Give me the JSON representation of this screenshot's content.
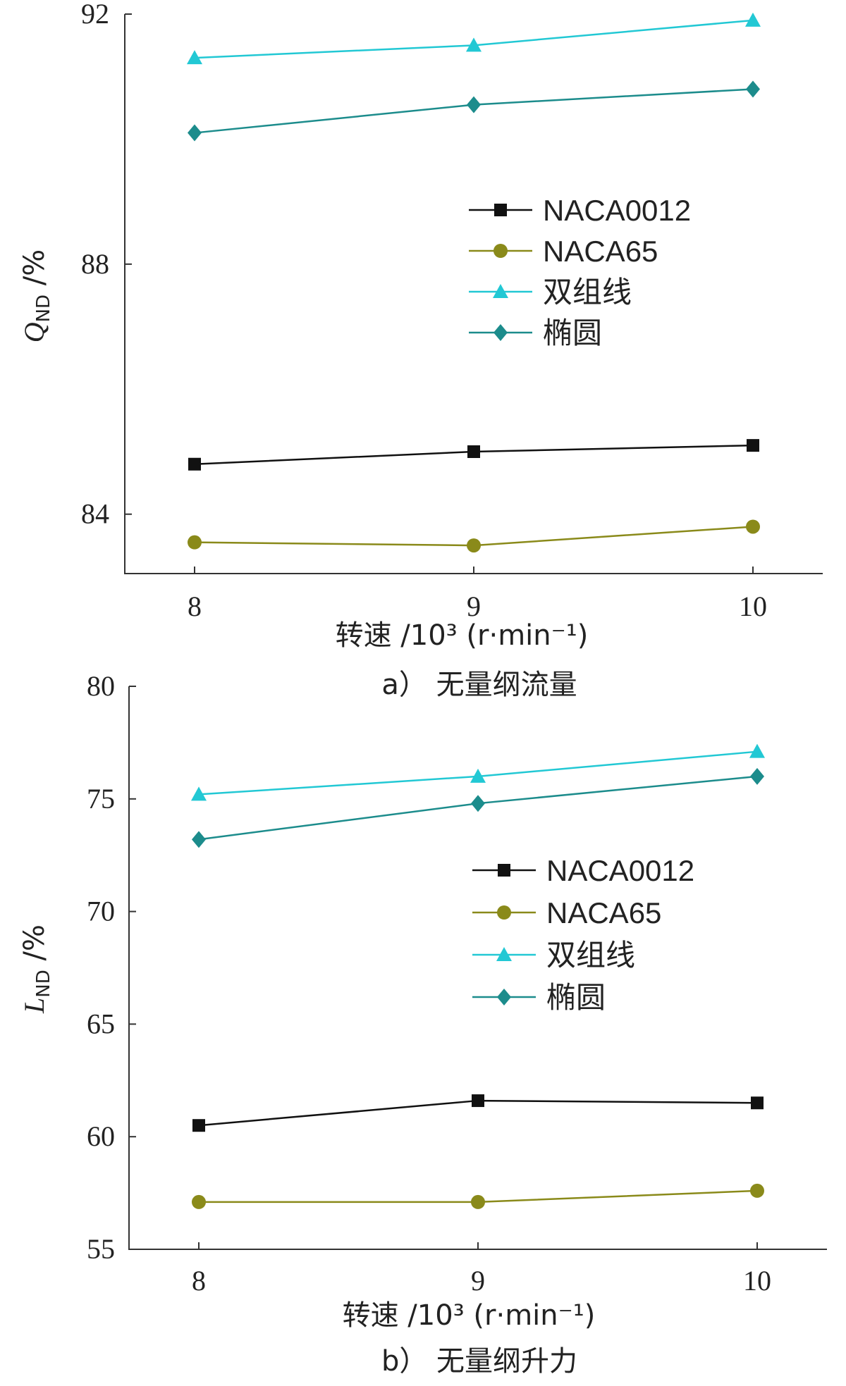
{
  "chart_data": [
    {
      "type": "line",
      "caption": "a）  无量纲流量",
      "xlabel": "转速 /10³ (r·min⁻¹)",
      "ylabel": "Q_ND /%",
      "ylabel_main": "Q",
      "ylabel_sub": "ND",
      "ylabel_unit": " /%",
      "x": [
        8,
        9,
        10
      ],
      "xticks": [
        "8",
        "9",
        "10"
      ],
      "xlim": [
        7.75,
        10.25
      ],
      "yticks": [
        "84",
        "88",
        "92"
      ],
      "ylim": [
        83.05,
        92.0
      ],
      "grid": false,
      "legend_position": "center-right",
      "series": [
        {
          "name": "NACA0012",
          "color": "#111111",
          "marker": "square",
          "values": [
            84.8,
            85.0,
            85.1
          ]
        },
        {
          "name": "NACA65",
          "color": "#8a8a1a",
          "marker": "circle",
          "values": [
            83.55,
            83.5,
            83.8
          ]
        },
        {
          "name": "双组线",
          "color": "#22c8d4",
          "marker": "triangle",
          "values": [
            91.3,
            91.5,
            91.9
          ]
        },
        {
          "name": "椭圆",
          "color": "#1c8c8c",
          "marker": "diamond",
          "values": [
            90.1,
            90.55,
            90.8
          ]
        }
      ]
    },
    {
      "type": "line",
      "caption": "b）  无量纲升力",
      "xlabel": "转速 /10³ (r·min⁻¹)",
      "ylabel": "L_ND /%",
      "ylabel_main": "L",
      "ylabel_sub": "ND",
      "ylabel_unit": " /%",
      "x": [
        8,
        9,
        10
      ],
      "xticks": [
        "8",
        "9",
        "10"
      ],
      "xlim": [
        7.75,
        10.25
      ],
      "yticks": [
        "55",
        "60",
        "65",
        "70",
        "75",
        "80"
      ],
      "ylim": [
        55,
        80
      ],
      "grid": false,
      "legend_position": "center-right",
      "series": [
        {
          "name": "NACA0012",
          "color": "#111111",
          "marker": "square",
          "values": [
            60.5,
            61.6,
            61.5
          ]
        },
        {
          "name": "NACA65",
          "color": "#8a8a1a",
          "marker": "circle",
          "values": [
            57.1,
            57.1,
            57.6
          ]
        },
        {
          "name": "双组线",
          "color": "#22c8d4",
          "marker": "triangle",
          "values": [
            75.2,
            76.0,
            77.1
          ]
        },
        {
          "name": "椭圆",
          "color": "#1c8c8c",
          "marker": "diamond",
          "values": [
            73.2,
            74.8,
            76.0
          ]
        }
      ]
    }
  ]
}
